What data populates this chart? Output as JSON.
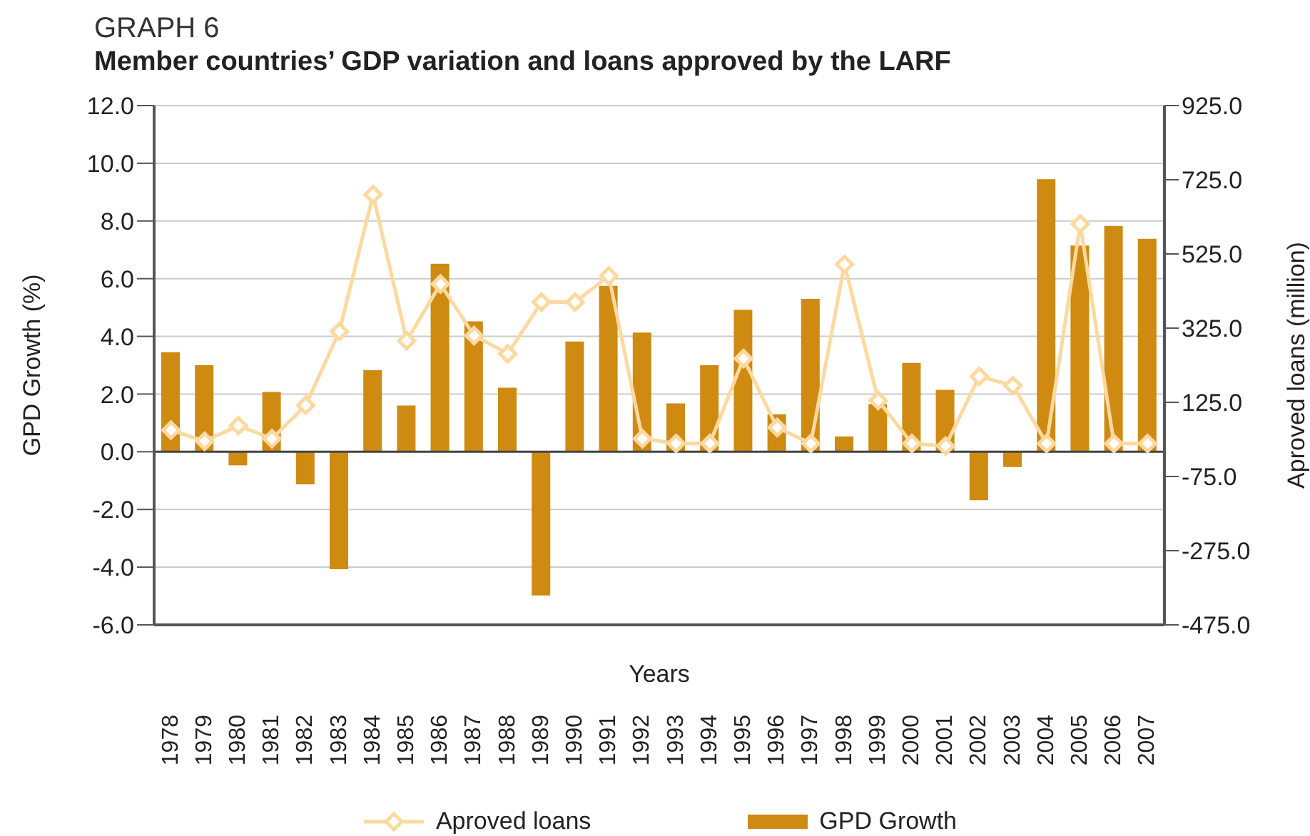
{
  "chart_data": {
    "type": "bar",
    "title": "GRAPH 6",
    "subtitle": "Member countries’ GDP variation and loans approved by the LARF",
    "xlabel": "Years",
    "ylabel": "GPD Growth (%)",
    "y2label": "Aproved loans (million)",
    "categories": [
      "1978",
      "1979",
      "1980",
      "1981",
      "1982",
      "1983",
      "1984",
      "1985",
      "1986",
      "1987",
      "1988",
      "1989",
      "1990",
      "1991",
      "1992",
      "1993",
      "1994",
      "1995",
      "1996",
      "1997",
      "1998",
      "1999",
      "2000",
      "2001",
      "2002",
      "2003",
      "2004",
      "2005",
      "2006",
      "2007"
    ],
    "series": [
      {
        "name": "Aproved loans",
        "type": "line",
        "axis": "y2",
        "color": "#fdd9a0",
        "marker": "diamond",
        "values": [
          50,
          20,
          62,
          27,
          117,
          316,
          685,
          291,
          444,
          305,
          256,
          395,
          395,
          466,
          27,
          14,
          14,
          243,
          57,
          14,
          497,
          130,
          14,
          7,
          195,
          170,
          14,
          606,
          14,
          14
        ]
      },
      {
        "name": "GPD Growth",
        "color": "#cf8a12",
        "values": [
          3.45,
          3.0,
          -0.47,
          2.07,
          -1.13,
          -4.07,
          2.83,
          1.6,
          6.52,
          4.52,
          2.22,
          -4.98,
          3.82,
          5.75,
          4.13,
          1.68,
          3.0,
          4.92,
          1.3,
          5.3,
          0.53,
          1.65,
          3.08,
          2.15,
          -1.68,
          -0.53,
          9.45,
          7.15,
          7.83,
          7.38
        ]
      }
    ],
    "ylim": [
      -6,
      12
    ],
    "yticks": [
      {
        "value": -6,
        "label": "-6.0"
      },
      {
        "value": -4,
        "label": "-4.0"
      },
      {
        "value": -2,
        "label": "-2.0"
      },
      {
        "value": 0,
        "label": "0.0"
      },
      {
        "value": 2,
        "label": "2.0"
      },
      {
        "value": 4,
        "label": "4.0"
      },
      {
        "value": 6,
        "label": "6.0"
      },
      {
        "value": 8,
        "label": "8.0"
      },
      {
        "value": 10,
        "label": "10.0"
      },
      {
        "value": 12,
        "label": "12.0"
      }
    ],
    "y2lim": [
      -475,
      925
    ],
    "y2ticks": [
      {
        "value": -475,
        "label": "-475.0"
      },
      {
        "value": -275,
        "label": "-275.0"
      },
      {
        "value": -75,
        "label": "-75.0"
      },
      {
        "value": 125,
        "label": "125.0"
      },
      {
        "value": 325,
        "label": "325.0"
      },
      {
        "value": 525,
        "label": "525.0"
      },
      {
        "value": 725,
        "label": "725.0"
      },
      {
        "value": 925,
        "label": "925.0"
      }
    ],
    "grid": "y",
    "legend": "bottom"
  }
}
